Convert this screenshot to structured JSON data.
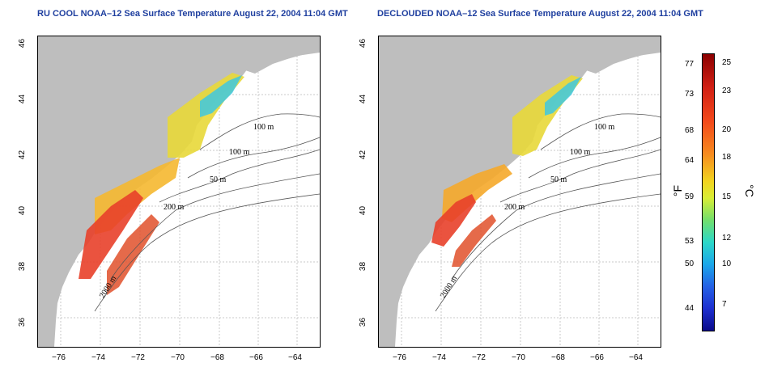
{
  "titles": {
    "left": "RU COOL NOAA–12 Sea Surface Temperature August 22, 2004 11:04 GMT",
    "right": "DECLOUDED NOAA–12 Sea Surface Temperature August 22, 2004 11:04 GMT"
  },
  "x_ticks": [
    "−76",
    "−74",
    "−72",
    "−70",
    "−68",
    "−66",
    "−64"
  ],
  "y_ticks": [
    "46",
    "44",
    "42",
    "40",
    "38",
    "36"
  ],
  "contours": {
    "label_100a": "100 m",
    "label_100b": "100 m",
    "label_50": "50 m",
    "label_200": "200 m",
    "label_2000": "2000 m"
  },
  "colorbar": {
    "fahrenheit_label": "°F",
    "celsius_label": "°C",
    "fahrenheit_ticks": [
      "77",
      "73",
      "68",
      "64",
      "59",
      "53",
      "50",
      "44"
    ],
    "celsius_ticks": [
      "25",
      "23",
      "20",
      "18",
      "15",
      "12",
      "10",
      "7"
    ],
    "colors": [
      "#8b0000",
      "#f2471a",
      "#f2d41f",
      "#2cd8c8",
      "#0a0a8a"
    ]
  },
  "colors": {
    "land": "#bebebe",
    "title": "#1f3f9f",
    "water": "#ffffff"
  }
}
